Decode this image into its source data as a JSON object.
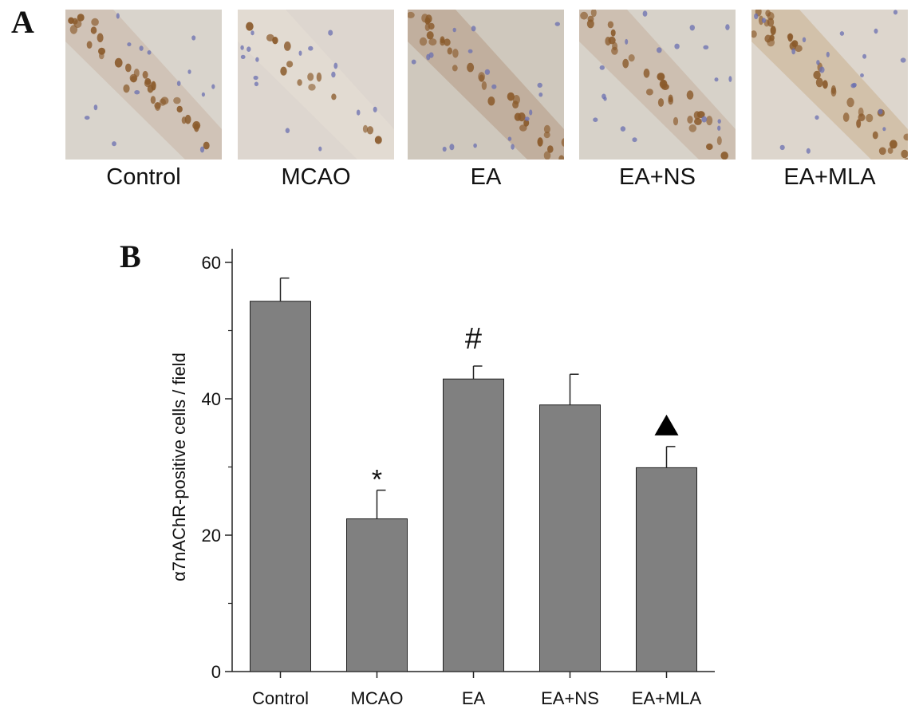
{
  "panel_a": {
    "letter": "A",
    "images": [
      {
        "label": "Control",
        "bg": "#d9d4cc",
        "tint": "#c9b7a8",
        "brown_count": 34,
        "blue_count": 14,
        "band": "diag-down"
      },
      {
        "label": "MCAO",
        "bg": "#ddd6cf",
        "tint": "#e6ddd3",
        "brown_count": 14,
        "blue_count": 16,
        "band": "diag-down"
      },
      {
        "label": "EA",
        "bg": "#cfc8bd",
        "tint": "#b79f89",
        "brown_count": 34,
        "blue_count": 18,
        "band": "diag-down"
      },
      {
        "label": "EA+NS",
        "bg": "#d7d2c9",
        "tint": "#c6b3a2",
        "brown_count": 32,
        "blue_count": 18,
        "band": "diag-down"
      },
      {
        "label": "EA+MLA",
        "bg": "#ddd6cd",
        "tint": "#ccb393",
        "brown_count": 36,
        "blue_count": 20,
        "band": "diag-down"
      }
    ]
  },
  "panel_b": {
    "letter": "B"
  },
  "colors": {
    "bar": "#808080",
    "bar_border": "#222222",
    "axis": "#222222",
    "cell_brown": "#8a5a2b",
    "cell_blue": "#6a6fb0"
  },
  "chart_data": {
    "type": "bar",
    "categories": [
      "Control",
      "MCAO",
      "EA",
      "EA+NS",
      "EA+MLA"
    ],
    "values": [
      54.3,
      22.4,
      42.9,
      39.1,
      29.9
    ],
    "errors": [
      3.4,
      4.2,
      1.9,
      4.5,
      3.1
    ],
    "annotations": [
      "",
      "*",
      "#",
      "",
      "▲"
    ],
    "ylabel": "α7nAChR-positive cells / field",
    "xlabel": "",
    "ylim": [
      0,
      62
    ],
    "yticks": [
      0,
      20,
      40,
      60
    ]
  }
}
